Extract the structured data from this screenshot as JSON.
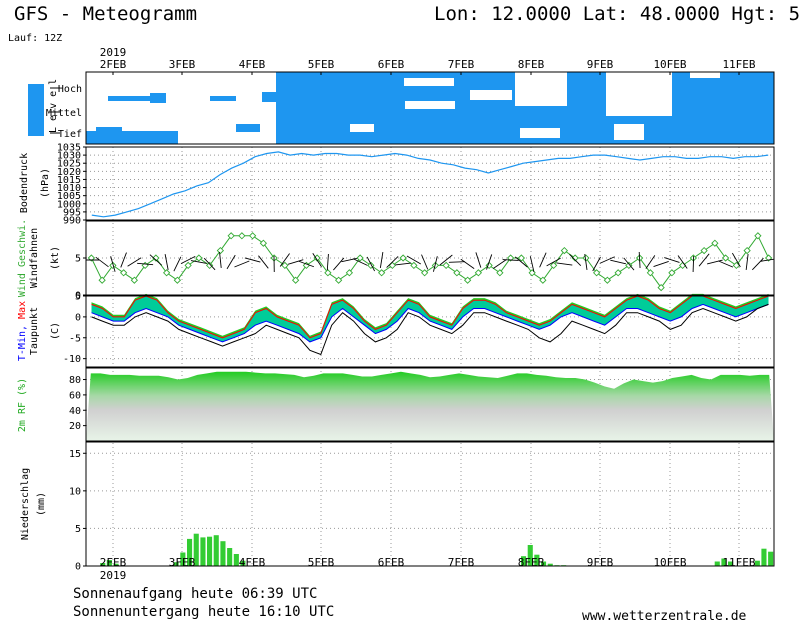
{
  "header": {
    "title": "GFS - Meteogramm",
    "location": "Lon: 12.0000 Lat: 48.0000 Hgt: 5",
    "run": "Lauf: 12Z",
    "year": "2019"
  },
  "footer": {
    "sunrise": "Sonnenaufgang heute 06:39 UTC",
    "sunset": "Sonnenuntergang heute 16:10 UTC",
    "site": "www.wetterzentrale.de",
    "year": "2019"
  },
  "colors": {
    "cloud": "#1e96f0",
    "pressure_line": "#1e96f0",
    "wind_marker": "#33aa33",
    "temp_max": "#ff0000",
    "temp_min": "#0000ff",
    "temp_fill": "#00cc99",
    "dew_point": "#000000",
    "rh_fill": "#22cc22",
    "precip_bar": "#33cc33"
  },
  "chart_data": {
    "type": "meteogram",
    "dates": [
      "2FEB",
      "3FEB",
      "4FEB",
      "5FEB",
      "6FEB",
      "7FEB",
      "8FEB",
      "9FEB",
      "10FEB",
      "11FEB"
    ],
    "panels": [
      {
        "id": "clouds",
        "type": "heatmap",
        "ylabel": "Wolken (%)",
        "ylabel2": "L e v e l",
        "levels": [
          "Hoch",
          "Mittel",
          "Tief"
        ]
      },
      {
        "id": "pressure",
        "type": "line",
        "ylabel": "Bodendruck (hPa)",
        "ylim": [
          990,
          1035
        ],
        "yticks": [
          1035,
          1030,
          1025,
          1020,
          1015,
          1010,
          1005,
          1000,
          995,
          990
        ],
        "values": [
          993,
          992,
          993,
          995,
          997,
          1000,
          1003,
          1006,
          1008,
          1011,
          1013,
          1018,
          1022,
          1025,
          1029,
          1031,
          1032,
          1030,
          1031,
          1030,
          1031,
          1031,
          1030,
          1030,
          1029,
          1030,
          1031,
          1030,
          1028,
          1027,
          1025,
          1024,
          1022,
          1021,
          1019,
          1021,
          1023,
          1025,
          1026,
          1027,
          1028,
          1028,
          1029,
          1030,
          1030,
          1029,
          1028,
          1027,
          1028,
          1029,
          1029,
          1028,
          1028,
          1029,
          1029,
          1028,
          1029,
          1029,
          1030
        ]
      },
      {
        "id": "wind",
        "type": "line",
        "ylabel": "Wind Geschwi.",
        "ylabel2": "Windfahnen",
        "ylabel3": "(kt)",
        "ylim": [
          0,
          10
        ],
        "yticks": [
          0,
          5
        ],
        "values": [
          5,
          2,
          4,
          3,
          2,
          4,
          5,
          3,
          2,
          4,
          5,
          4,
          6,
          8,
          8,
          8,
          7,
          5,
          4,
          2,
          4,
          5,
          3,
          2,
          3,
          5,
          4,
          3,
          4,
          5,
          4,
          3,
          4,
          4,
          3,
          2,
          3,
          4,
          3,
          5,
          5,
          3,
          2,
          4,
          6,
          5,
          5,
          3,
          2,
          3,
          4,
          5,
          3,
          1,
          3,
          4,
          5,
          6,
          7,
          5,
          4,
          6,
          8,
          5
        ]
      },
      {
        "id": "temperature",
        "type": "area",
        "ylabel": "T-Min, Max",
        "ylabel2": "Taupunkt",
        "ylabel3": "(C)",
        "ylim": [
          -12,
          5
        ],
        "yticks": [
          5,
          0,
          -5,
          -10
        ],
        "t_max": [
          3,
          2,
          0,
          0,
          4,
          5,
          4,
          1,
          -1,
          -2,
          -3,
          -4,
          -5,
          -4,
          -3,
          1,
          2,
          0,
          -1,
          -2,
          -5,
          -4,
          3,
          4,
          2,
          -1,
          -3,
          -2,
          1,
          4,
          3,
          0,
          -1,
          -2,
          2,
          4,
          4,
          3,
          1,
          0,
          -1,
          -2,
          -1,
          1,
          3,
          2,
          1,
          0,
          2,
          4,
          5,
          4,
          2,
          1,
          3,
          5,
          5,
          4,
          3,
          2,
          3,
          4,
          5
        ],
        "t_min": [
          1,
          0,
          -1,
          -1,
          1,
          2,
          1,
          0,
          -2,
          -3,
          -4,
          -5,
          -6,
          -5,
          -4,
          -2,
          -1,
          -2,
          -3,
          -4,
          -6,
          -5,
          0,
          2,
          0,
          -2,
          -4,
          -3,
          -1,
          2,
          1,
          -1,
          -2,
          -3,
          0,
          2,
          2,
          1,
          0,
          -1,
          -2,
          -3,
          -2,
          0,
          1,
          0,
          -1,
          -2,
          0,
          2,
          2,
          1,
          0,
          -1,
          0,
          2,
          3,
          2,
          1,
          0,
          1,
          2,
          3
        ],
        "dew_point": [
          0,
          -1,
          -2,
          -2,
          0,
          1,
          0,
          -1,
          -3,
          -4,
          -5,
          -6,
          -7,
          -6,
          -5,
          -4,
          -2,
          -3,
          -4,
          -5,
          -8,
          -9,
          -2,
          1,
          -1,
          -4,
          -6,
          -5,
          -3,
          1,
          0,
          -2,
          -3,
          -4,
          -2,
          1,
          1,
          0,
          -1,
          -2,
          -3,
          -5,
          -6,
          -4,
          -1,
          -2,
          -3,
          -4,
          -2,
          1,
          1,
          0,
          -1,
          -3,
          -2,
          1,
          2,
          1,
          0,
          -1,
          0,
          2,
          3
        ]
      },
      {
        "id": "humidity",
        "type": "area",
        "ylabel": "2m RF (%)",
        "ylim": [
          0,
          95
        ],
        "yticks": [
          80,
          60,
          40,
          20
        ],
        "values": [
          88,
          88,
          86,
          86,
          86,
          85,
          85,
          85,
          83,
          80,
          82,
          86,
          88,
          90,
          90,
          90,
          90,
          89,
          88,
          88,
          87,
          86,
          83,
          85,
          88,
          88,
          88,
          86,
          84,
          84,
          86,
          88,
          90,
          88,
          86,
          83,
          84,
          86,
          88,
          86,
          84,
          83,
          82,
          85,
          88,
          88,
          86,
          85,
          83,
          82,
          82,
          80,
          76,
          71,
          68,
          75,
          80,
          78,
          76,
          78,
          82,
          84,
          86,
          82,
          80,
          86,
          86,
          86,
          85,
          86,
          86
        ]
      },
      {
        "id": "precip",
        "type": "bar",
        "ylabel": "Niederschlag",
        "ylabel2": "(mm)",
        "ylim": [
          0,
          16.5
        ],
        "yticks": [
          15,
          10,
          5,
          0
        ],
        "values": [
          0,
          0,
          0.4,
          0.8,
          0.3,
          0,
          0,
          0,
          0,
          0,
          0,
          0,
          0,
          0.5,
          1.8,
          3.6,
          4.3,
          3.8,
          3.9,
          4.1,
          3.3,
          2.4,
          1.6,
          0.7,
          0,
          0,
          0,
          0,
          0,
          0,
          0,
          0,
          0,
          0,
          0,
          0,
          0,
          0,
          0,
          0,
          0,
          0,
          0,
          0,
          0,
          0,
          0,
          0,
          0,
          0,
          0,
          0,
          0,
          0,
          0,
          0,
          0,
          0,
          0,
          0,
          0,
          0,
          0,
          0,
          0,
          1.3,
          2.8,
          1.5,
          0.6,
          0.3,
          0.1,
          0.1,
          0,
          0,
          0,
          0,
          0,
          0,
          0,
          0,
          0,
          0,
          0,
          0,
          0,
          0,
          0,
          0,
          0,
          0,
          0,
          0,
          0,
          0,
          0.6,
          1,
          0.6,
          0,
          0,
          0,
          0.7,
          2.3,
          1.9
        ]
      }
    ]
  }
}
